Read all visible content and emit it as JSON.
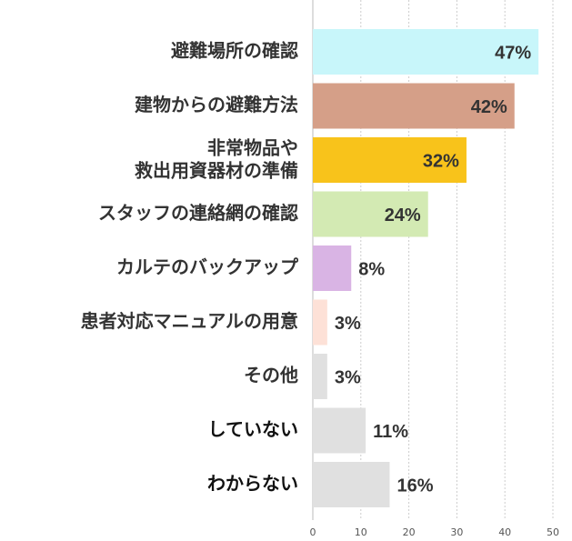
{
  "chart_data": {
    "type": "hbar",
    "categories": [
      "避難場所の確認",
      "建物からの避難方法",
      [
        "非常物品や",
        "救出用資器材の準備"
      ],
      "スタッフの連絡網の確認",
      "カルテのバックアップ",
      "患者対応マニュアルの用意",
      "その他",
      "していない",
      "わからない"
    ],
    "values": [
      47,
      42,
      32,
      24,
      8,
      3,
      3,
      11,
      16
    ],
    "value_labels": [
      "47%",
      "42%",
      "32%",
      "24%",
      "8%",
      "3%",
      "3%",
      "11%",
      "16%"
    ],
    "colors": [
      "#c8f6fa",
      "#d59f88",
      "#f8c31b",
      "#d3eab3",
      "#d9b4e4",
      "#fde1d7",
      "#e0e0e0",
      "#e0e0e0",
      "#e0e0e0"
    ],
    "xlim": [
      0,
      50
    ],
    "xticks": [
      0,
      10,
      20,
      30,
      40,
      50
    ],
    "grid": true
  }
}
